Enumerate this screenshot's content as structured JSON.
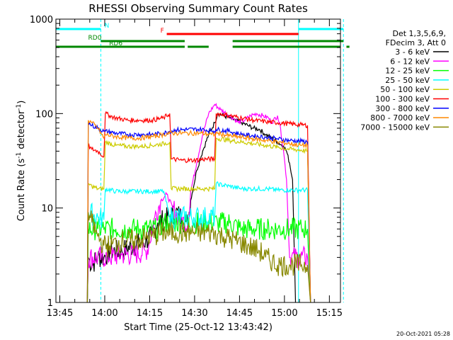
{
  "chart_data": {
    "type": "line",
    "title": "RHESSI Observing Summary Count Rates",
    "xlabel": "Start Time (25-Oct-12 13:43:42)",
    "ylabel": "Count Rate (s⁻¹ detector⁻¹)",
    "ylabel_parts": [
      "Count Rate (s",
      "-1",
      " detector",
      "-1",
      ")"
    ],
    "x_unit": "minutes since 13:43:42",
    "xlim": [
      0,
      95
    ],
    "ylim": [
      1,
      1000
    ],
    "yscale": "log",
    "xticks": [
      {
        "t": 1.3,
        "label": "13:45"
      },
      {
        "t": 16.3,
        "label": "14:00"
      },
      {
        "t": 31.3,
        "label": "14:15"
      },
      {
        "t": 46.3,
        "label": "14:30"
      },
      {
        "t": 61.3,
        "label": "14:45"
      },
      {
        "t": 76.3,
        "label": "15:00"
      },
      {
        "t": 91.3,
        "label": "15:15"
      }
    ],
    "yticks": [
      {
        "v": 1,
        "label": "1"
      },
      {
        "v": 10,
        "label": "10"
      },
      {
        "v": 100,
        "label": "100"
      },
      {
        "v": 1000,
        "label": "1000"
      }
    ],
    "legend": {
      "position": "right",
      "header": [
        "Det 1,3,5,6,9,",
        "FDecim 3, Att 0"
      ],
      "entries": [
        {
          "label": "3 - 6 keV",
          "color": "#000000"
        },
        {
          "label": "6 - 12 keV",
          "color": "#ff00ff"
        },
        {
          "label": "12 - 25 keV",
          "color": "#00ff00"
        },
        {
          "label": "25 - 50 keV",
          "color": "#00ffff"
        },
        {
          "label": "50 - 100 keV",
          "color": "#cccc00"
        },
        {
          "label": "100 - 300 keV",
          "color": "#ff0000"
        },
        {
          "label": "300 - 800 keV",
          "color": "#0000ff"
        },
        {
          "label": "800 - 7000 keV",
          "color": "#ff8800"
        },
        {
          "label": "7000 - 15000 keV",
          "color": "#888800"
        }
      ]
    },
    "series": [
      {
        "name": "3 - 6 keV",
        "color": "#000000",
        "points": [
          [
            10.5,
            1
          ],
          [
            10.8,
            3
          ],
          [
            12,
            2.5
          ],
          [
            14,
            3
          ],
          [
            16,
            3
          ],
          [
            18,
            3.5
          ],
          [
            22,
            3.5
          ],
          [
            26,
            4
          ],
          [
            30,
            4.5
          ],
          [
            32,
            5
          ],
          [
            34,
            7
          ],
          [
            38,
            8
          ],
          [
            40,
            9
          ],
          [
            42,
            8
          ],
          [
            43,
            7
          ],
          [
            44,
            7
          ],
          [
            45,
            12
          ],
          [
            47,
            25
          ],
          [
            49,
            40
          ],
          [
            51,
            60
          ],
          [
            53,
            80
          ],
          [
            54,
            100
          ],
          [
            56,
            95
          ],
          [
            58,
            90
          ],
          [
            60,
            85
          ],
          [
            62,
            80
          ],
          [
            64,
            75
          ],
          [
            66,
            70
          ],
          [
            68,
            68
          ],
          [
            70,
            60
          ],
          [
            72,
            55
          ],
          [
            74,
            50
          ],
          [
            76,
            45
          ],
          [
            77,
            40
          ],
          [
            78,
            30
          ],
          [
            79,
            20
          ],
          [
            80,
            1
          ]
        ]
      },
      {
        "name": "6 - 12 keV",
        "color": "#ff00ff",
        "points": [
          [
            10.5,
            1
          ],
          [
            10.8,
            3
          ],
          [
            14,
            3
          ],
          [
            18,
            3
          ],
          [
            22,
            3.2
          ],
          [
            26,
            3.2
          ],
          [
            30,
            3.5
          ],
          [
            31,
            4
          ],
          [
            33,
            8
          ],
          [
            35,
            12
          ],
          [
            37,
            14
          ],
          [
            39,
            10
          ],
          [
            41,
            8
          ],
          [
            43,
            7
          ],
          [
            44,
            7
          ],
          [
            45,
            15
          ],
          [
            47,
            30
          ],
          [
            49,
            60
          ],
          [
            51,
            100
          ],
          [
            53,
            125
          ],
          [
            55,
            110
          ],
          [
            57,
            100
          ],
          [
            59,
            90
          ],
          [
            61,
            80
          ],
          [
            63,
            85
          ],
          [
            65,
            95
          ],
          [
            67,
            100
          ],
          [
            69,
            95
          ],
          [
            71,
            90
          ],
          [
            72,
            80
          ],
          [
            74,
            95
          ],
          [
            75,
            70
          ],
          [
            76,
            40
          ],
          [
            77,
            20
          ],
          [
            78,
            3
          ],
          [
            81,
            3
          ],
          [
            84,
            3
          ],
          [
            85,
            1
          ]
        ]
      },
      {
        "name": "12 - 25 keV",
        "color": "#00ff00",
        "points": [
          [
            10.5,
            1
          ],
          [
            10.8,
            6
          ],
          [
            14,
            6
          ],
          [
            16,
            6
          ],
          [
            20,
            6
          ],
          [
            24,
            6
          ],
          [
            28,
            6
          ],
          [
            32,
            6
          ],
          [
            34,
            6
          ],
          [
            36,
            7
          ],
          [
            38,
            7
          ],
          [
            40,
            7
          ],
          [
            42,
            7
          ],
          [
            44,
            7
          ],
          [
            46,
            7
          ],
          [
            48,
            7
          ],
          [
            50,
            7
          ],
          [
            54,
            7
          ],
          [
            58,
            7
          ],
          [
            62,
            6
          ],
          [
            66,
            6
          ],
          [
            70,
            6
          ],
          [
            74,
            6
          ],
          [
            78,
            6
          ],
          [
            82,
            6
          ],
          [
            84,
            6
          ],
          [
            85,
            1
          ]
        ]
      },
      {
        "name": "25 - 50 keV",
        "color": "#00ffff",
        "points": [
          [
            10.5,
            1
          ],
          [
            10.8,
            9
          ],
          [
            14,
            8
          ],
          [
            16,
            7.5
          ],
          [
            16.5,
            16
          ],
          [
            20,
            15
          ],
          [
            24,
            15
          ],
          [
            28,
            15
          ],
          [
            32,
            15
          ],
          [
            36,
            15
          ],
          [
            38,
            8
          ],
          [
            42,
            8
          ],
          [
            46,
            8
          ],
          [
            50,
            8
          ],
          [
            53,
            8
          ],
          [
            53.5,
            18
          ],
          [
            58,
            17
          ],
          [
            62,
            16
          ],
          [
            66,
            16
          ],
          [
            70,
            16
          ],
          [
            74,
            15.5
          ],
          [
            78,
            15.5
          ],
          [
            82,
            15.5
          ],
          [
            84,
            15.5
          ],
          [
            85,
            1
          ]
        ]
      },
      {
        "name": "50 - 100 keV",
        "color": "#cccc00",
        "points": [
          [
            10.5,
            1
          ],
          [
            10.8,
            18
          ],
          [
            12,
            17
          ],
          [
            14,
            16
          ],
          [
            16,
            16
          ],
          [
            16.5,
            50
          ],
          [
            20,
            46
          ],
          [
            24,
            45
          ],
          [
            28,
            45
          ],
          [
            32,
            46
          ],
          [
            36,
            48
          ],
          [
            38,
            50
          ],
          [
            38.5,
            16
          ],
          [
            42,
            16
          ],
          [
            46,
            16
          ],
          [
            50,
            16
          ],
          [
            53,
            16
          ],
          [
            53.5,
            55
          ],
          [
            58,
            52
          ],
          [
            62,
            50
          ],
          [
            66,
            48
          ],
          [
            70,
            46
          ],
          [
            74,
            44
          ],
          [
            78,
            42
          ],
          [
            82,
            41
          ],
          [
            84,
            40
          ],
          [
            85,
            1
          ]
        ]
      },
      {
        "name": "100 - 300 keV",
        "color": "#ff0000",
        "points": [
          [
            10.5,
            1
          ],
          [
            10.8,
            45
          ],
          [
            12,
            42
          ],
          [
            14,
            40
          ],
          [
            16,
            35
          ],
          [
            16.5,
            100
          ],
          [
            18,
            95
          ],
          [
            20,
            90
          ],
          [
            24,
            85
          ],
          [
            28,
            85
          ],
          [
            32,
            85
          ],
          [
            36,
            90
          ],
          [
            38,
            100
          ],
          [
            38.5,
            33
          ],
          [
            42,
            32
          ],
          [
            46,
            32
          ],
          [
            50,
            33
          ],
          [
            53,
            33
          ],
          [
            53.5,
            100
          ],
          [
            56,
            98
          ],
          [
            58,
            95
          ],
          [
            62,
            90
          ],
          [
            66,
            85
          ],
          [
            70,
            82
          ],
          [
            74,
            80
          ],
          [
            78,
            78
          ],
          [
            82,
            76
          ],
          [
            84,
            75
          ],
          [
            85,
            1
          ]
        ]
      },
      {
        "name": "300 - 800 keV",
        "color": "#0000ff",
        "points": [
          [
            10.5,
            1
          ],
          [
            10.8,
            80
          ],
          [
            12,
            75
          ],
          [
            14,
            70
          ],
          [
            16,
            65
          ],
          [
            16.5,
            65
          ],
          [
            20,
            62
          ],
          [
            24,
            60
          ],
          [
            28,
            60
          ],
          [
            32,
            60
          ],
          [
            36,
            62
          ],
          [
            38,
            65
          ],
          [
            40,
            67
          ],
          [
            44,
            68
          ],
          [
            48,
            68
          ],
          [
            52,
            66
          ],
          [
            53,
            65
          ],
          [
            53.5,
            68
          ],
          [
            58,
            65
          ],
          [
            62,
            60
          ],
          [
            66,
            58
          ],
          [
            70,
            56
          ],
          [
            74,
            54
          ],
          [
            78,
            52
          ],
          [
            82,
            51
          ],
          [
            84,
            50
          ],
          [
            85,
            1
          ]
        ]
      },
      {
        "name": "800 - 7000 keV",
        "color": "#ff8800",
        "points": [
          [
            10.5,
            1
          ],
          [
            10.8,
            85
          ],
          [
            12,
            80
          ],
          [
            14,
            70
          ],
          [
            16,
            55
          ],
          [
            16.5,
            60
          ],
          [
            20,
            57
          ],
          [
            24,
            55
          ],
          [
            28,
            55
          ],
          [
            32,
            57
          ],
          [
            36,
            60
          ],
          [
            38,
            62
          ],
          [
            40,
            62
          ],
          [
            44,
            62
          ],
          [
            48,
            62
          ],
          [
            52,
            60
          ],
          [
            53,
            60
          ],
          [
            53.5,
            62
          ],
          [
            58,
            58
          ],
          [
            62,
            56
          ],
          [
            66,
            54
          ],
          [
            70,
            52
          ],
          [
            74,
            50
          ],
          [
            78,
            48
          ],
          [
            82,
            46
          ],
          [
            84,
            46
          ],
          [
            85,
            1
          ]
        ]
      },
      {
        "name": "7000 - 15000 keV",
        "color": "#888800",
        "points": [
          [
            10.5,
            1
          ],
          [
            10.8,
            9
          ],
          [
            12,
            7
          ],
          [
            14,
            5
          ],
          [
            16,
            4
          ],
          [
            18,
            4
          ],
          [
            22,
            4.5
          ],
          [
            26,
            4.5
          ],
          [
            30,
            4.8
          ],
          [
            32,
            5
          ],
          [
            36,
            5.5
          ],
          [
            40,
            5.5
          ],
          [
            44,
            5.5
          ],
          [
            48,
            5.5
          ],
          [
            52,
            5.5
          ],
          [
            56,
            5
          ],
          [
            60,
            4.5
          ],
          [
            64,
            4
          ],
          [
            68,
            3.5
          ],
          [
            70,
            3
          ],
          [
            74,
            2.5
          ],
          [
            78,
            2.5
          ],
          [
            82,
            2.5
          ],
          [
            84,
            2.5
          ],
          [
            85,
            1
          ]
        ]
      }
    ],
    "attenuator_lines": [
      {
        "t": 0,
        "color": "#00ffff"
      },
      {
        "t": 15,
        "color": "#00ffff",
        "dashed": true
      },
      {
        "t": 81,
        "color": "#00ffff"
      },
      {
        "t": 96,
        "color": "#00ffff",
        "dashed": true
      }
    ],
    "flag_bars": [
      {
        "label": "N",
        "color": "#00ffff",
        "segments": [
          [
            0,
            15
          ],
          [
            81,
            96
          ]
        ],
        "level": 1,
        "label_t": 17
      },
      {
        "label": "F",
        "color": "#ff0000",
        "segments": [
          [
            37,
            81
          ]
        ],
        "level": 2,
        "label_t": 35.5
      },
      {
        "label": "RD0",
        "color": "#008800",
        "segments": [
          [
            15,
            43
          ],
          [
            59,
            96
          ]
        ],
        "level": 3,
        "label_t": 13
      },
      {
        "label": "RD6",
        "color": "#008800",
        "segments": [
          [
            0,
            43
          ],
          [
            44,
            51
          ],
          [
            59,
            95
          ],
          [
            97,
            98
          ]
        ],
        "level": 4,
        "label_t": 20
      }
    ],
    "grid": false
  },
  "footer": {
    "timestamp": "20-Oct-2021 05:28"
  }
}
